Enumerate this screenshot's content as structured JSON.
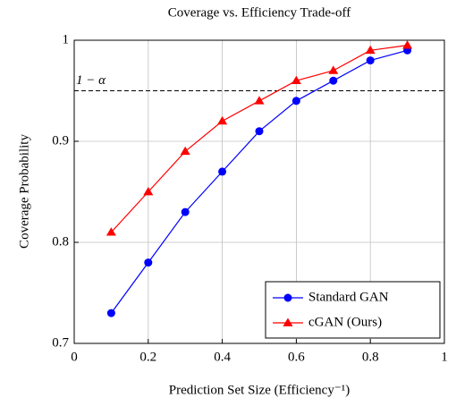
{
  "chart_data": {
    "type": "line",
    "title": "Coverage vs. Efficiency Trade-off",
    "x_label": "Prediction Set Size (Efficiency⁻¹)",
    "y_label": "Coverage Probability",
    "x": [
      0.1,
      0.2,
      0.3,
      0.4,
      0.5,
      0.6,
      0.7,
      0.8,
      0.9
    ],
    "series": [
      {
        "name": "Standard GAN",
        "color": "#0000ff",
        "marker": "circle",
        "values": [
          0.73,
          0.78,
          0.83,
          0.87,
          0.91,
          0.94,
          0.96,
          0.98,
          0.99
        ]
      },
      {
        "name": "cGAN (Ours)",
        "color": "#ff0000",
        "marker": "triangle",
        "values": [
          0.81,
          0.85,
          0.89,
          0.92,
          0.94,
          0.96,
          0.97,
          0.99,
          0.995
        ]
      }
    ],
    "reference_line": {
      "value": 0.95,
      "label": "1 − α"
    },
    "xlim": [
      0,
      1
    ],
    "xticks": [
      0,
      0.2,
      0.4,
      0.6,
      0.8,
      1
    ],
    "ylim": [
      0.7,
      1
    ],
    "yticks": [
      0.7,
      0.8,
      0.9,
      1
    ],
    "grid": true,
    "legend": "lower right"
  }
}
